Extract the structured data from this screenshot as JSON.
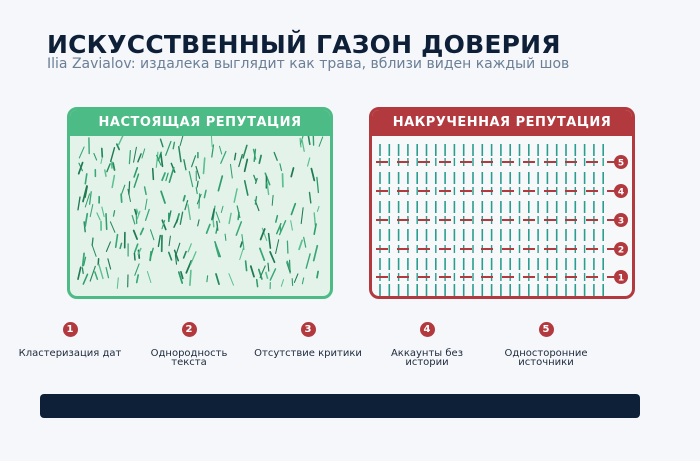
{
  "header": {
    "title": "ИСКУССТВЕННЫЙ ГАЗОН ДОВЕРИЯ",
    "subtitle": "Ilia Zavialov: издалека выглядит как трава, вблизи виден каждый шов"
  },
  "panels": {
    "real": {
      "label": "НАСТОЯЩАЯ РЕПУТАЦИЯ"
    },
    "fake": {
      "label": "НАКРУЧЕННАЯ РЕПУТАЦИЯ",
      "row_markers": [
        "5",
        "4",
        "3",
        "2",
        "1"
      ]
    }
  },
  "legend": [
    {
      "num": "1",
      "label": "Кластеризация дат"
    },
    {
      "num": "2",
      "label": "Однородность текста"
    },
    {
      "num": "3",
      "label": "Отсутствие критики"
    },
    {
      "num": "4",
      "label": "Аккаунты без истории"
    },
    {
      "num": "5",
      "label": "Односторонние источники"
    }
  ],
  "colors": {
    "navy": "#0e1f38",
    "green": "#4cbb86",
    "green_bg": "#e4f3ea",
    "red": "#b23a3f",
    "teal_blade": "#2a9d8f"
  }
}
